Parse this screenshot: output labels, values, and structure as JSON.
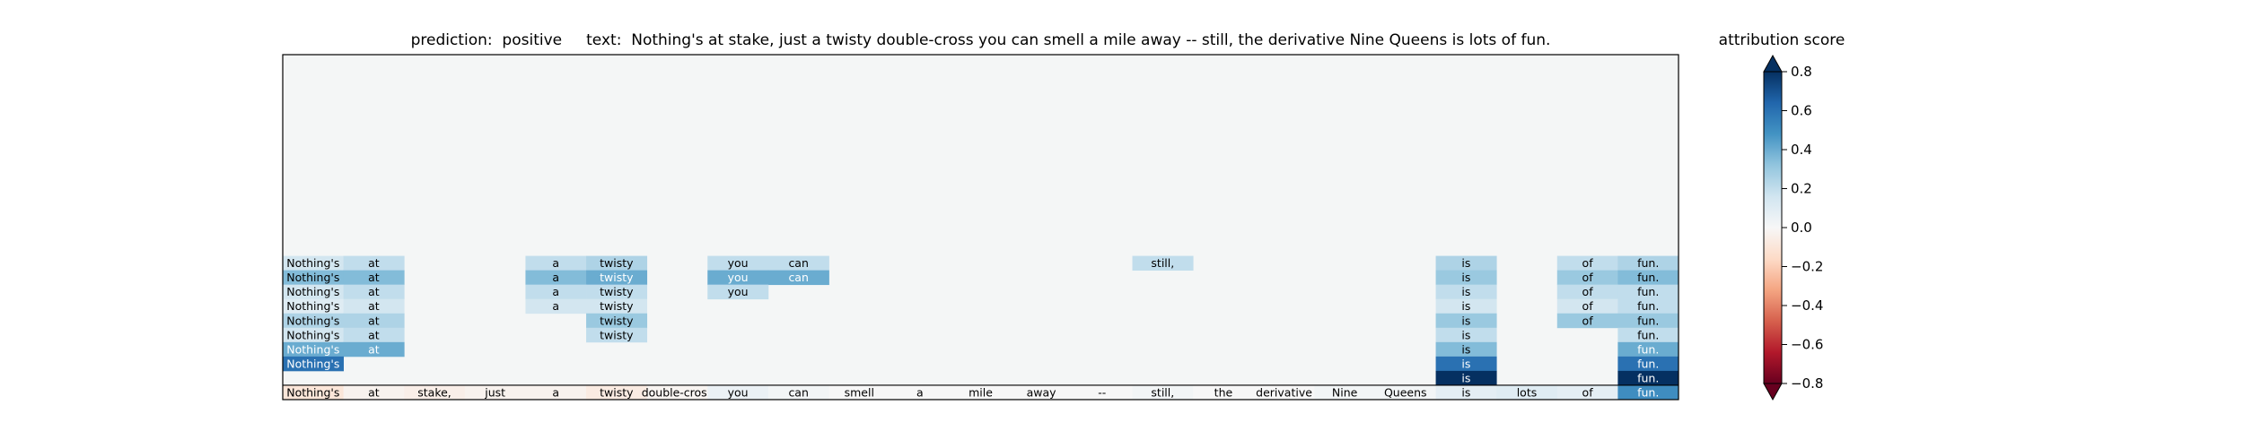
{
  "chart_data": {
    "type": "heatmap",
    "title": {
      "prediction_label": "prediction:",
      "prediction": "positive",
      "text_label": "text:",
      "text": "Nothing's at stake, just a twisty double-cross you can smell a mile away -- still, the derivative Nine Queens is lots of fun."
    },
    "tokens": [
      "Nothing's",
      "at",
      "stake,",
      "just",
      "a",
      "twisty",
      "double-cross",
      "you",
      "can",
      "smell",
      "a",
      "mile",
      "away",
      "--",
      "still,",
      "the",
      "derivative",
      "Nine",
      "Queens",
      "is",
      "lots",
      "of",
      "fun."
    ],
    "n_rows": 24,
    "rows": [
      {
        "row": 14,
        "cells": [
          [
            0,
            0.15
          ],
          [
            1,
            0.2
          ],
          [
            4,
            0.2
          ],
          [
            5,
            0.25
          ],
          [
            7,
            0.2
          ],
          [
            8,
            0.2
          ],
          [
            14,
            0.2
          ],
          [
            19,
            0.25
          ],
          [
            21,
            0.2
          ],
          [
            22,
            0.25
          ]
        ]
      },
      {
        "row": 15,
        "cells": [
          [
            0,
            0.35
          ],
          [
            1,
            0.35
          ],
          [
            4,
            0.35
          ],
          [
            5,
            0.4
          ],
          [
            7,
            0.4
          ],
          [
            8,
            0.4
          ],
          [
            19,
            0.3
          ],
          [
            21,
            0.3
          ],
          [
            22,
            0.35
          ]
        ]
      },
      {
        "row": 16,
        "cells": [
          [
            0,
            0.15
          ],
          [
            1,
            0.2
          ],
          [
            4,
            0.2
          ],
          [
            5,
            0.2
          ],
          [
            7,
            0.2
          ],
          [
            19,
            0.2
          ],
          [
            21,
            0.2
          ],
          [
            22,
            0.2
          ]
        ]
      },
      {
        "row": 17,
        "cells": [
          [
            0,
            0.1
          ],
          [
            1,
            0.15
          ],
          [
            4,
            0.15
          ],
          [
            5,
            0.15
          ],
          [
            19,
            0.15
          ],
          [
            21,
            0.15
          ],
          [
            22,
            0.2
          ]
        ]
      },
      {
        "row": 18,
        "cells": [
          [
            0,
            0.25
          ],
          [
            1,
            0.25
          ],
          [
            5,
            0.3
          ],
          [
            19,
            0.3
          ],
          [
            21,
            0.3
          ],
          [
            22,
            0.3
          ]
        ]
      },
      {
        "row": 19,
        "cells": [
          [
            0,
            0.15
          ],
          [
            1,
            0.2
          ],
          [
            5,
            0.2
          ],
          [
            19,
            0.2
          ],
          [
            22,
            0.2
          ]
        ]
      },
      {
        "row": 20,
        "cells": [
          [
            0,
            0.4
          ],
          [
            1,
            0.4
          ],
          [
            19,
            0.35
          ],
          [
            22,
            0.4
          ]
        ]
      },
      {
        "row": 21,
        "cells": [
          [
            0,
            0.6
          ],
          [
            19,
            0.6
          ],
          [
            22,
            0.6
          ]
        ]
      },
      {
        "row": 22,
        "cells": [
          [
            19,
            0.8
          ],
          [
            22,
            0.8
          ]
        ]
      },
      {
        "row": 23,
        "cells": [
          [
            0,
            -0.1
          ],
          [
            1,
            -0.03
          ],
          [
            2,
            -0.05
          ],
          [
            3,
            -0.03
          ],
          [
            4,
            -0.03
          ],
          [
            5,
            -0.07
          ],
          [
            6,
            -0.02
          ],
          [
            7,
            0.05
          ],
          [
            8,
            0.02
          ],
          [
            9,
            0.0
          ],
          [
            10,
            0.0
          ],
          [
            11,
            0.0
          ],
          [
            12,
            0.0
          ],
          [
            13,
            0.0
          ],
          [
            14,
            0.02
          ],
          [
            15,
            0.0
          ],
          [
            16,
            0.0
          ],
          [
            17,
            0.02
          ],
          [
            18,
            0.02
          ],
          [
            19,
            0.08
          ],
          [
            20,
            0.1
          ],
          [
            21,
            0.08
          ],
          [
            22,
            0.5
          ]
        ]
      }
    ],
    "colorbar": {
      "label": "attribution score",
      "range": [
        -0.8,
        0.8
      ],
      "ticks": [
        0.8,
        0.6,
        0.4,
        0.2,
        0.0,
        -0.2,
        -0.4,
        -0.6,
        -0.8
      ],
      "tick_labels": [
        "0.8",
        "0.6",
        "0.4",
        "0.2",
        "0.0",
        "−0.2",
        "−0.4",
        "−0.6",
        "−0.8"
      ],
      "colormap": "RdBu"
    },
    "background_color": "#f4f6f6"
  }
}
